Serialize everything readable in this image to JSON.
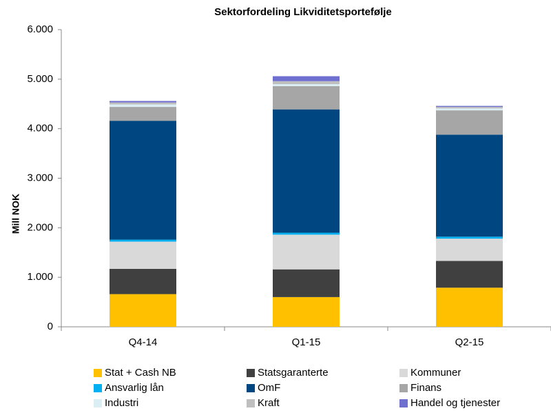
{
  "chart_data": {
    "type": "stacked_bar",
    "title": "Sektorfordeling Likviditetsportefølje",
    "y_label": "Mill NOK",
    "categories": [
      "Q4-14",
      "Q1-15",
      "Q2-15"
    ],
    "series": [
      {
        "name": "Stat + Cash NB",
        "color": "#FFC000",
        "values": [
          660,
          600,
          790
        ]
      },
      {
        "name": "Statsgaranterte",
        "color": "#404040",
        "values": [
          510,
          560,
          540
        ]
      },
      {
        "name": "Kommuner",
        "color": "#D9D9D9",
        "values": [
          550,
          700,
          450
        ]
      },
      {
        "name": "Ansvarlig lån",
        "color": "#00B0F0",
        "values": [
          40,
          40,
          40
        ]
      },
      {
        "name": "OmF",
        "color": "#004680",
        "values": [
          2400,
          2490,
          2060
        ]
      },
      {
        "name": "Finans",
        "color": "#A6A6A6",
        "values": [
          280,
          470,
          490
        ]
      },
      {
        "name": "Industri",
        "color": "#DAEEF3",
        "values": [
          50,
          40,
          40
        ]
      },
      {
        "name": "Kraft",
        "color": "#BFBFBF",
        "values": [
          40,
          60,
          30
        ]
      },
      {
        "name": "Handel og tjenester",
        "color": "#6F6FD0",
        "values": [
          30,
          100,
          20
        ]
      }
    ],
    "ylim": [
      0,
      6000
    ],
    "yticks": [
      0,
      {
        "value": 1000,
        "label": "1.000"
      },
      {
        "value": 2000,
        "label": "2.000"
      },
      {
        "value": 3000,
        "label": "3.000"
      },
      {
        "value": 4000,
        "label": "4.000"
      },
      {
        "value": 5000,
        "label": "5.000"
      },
      {
        "value": 6000,
        "label": "6.000"
      }
    ],
    "grid": false
  }
}
